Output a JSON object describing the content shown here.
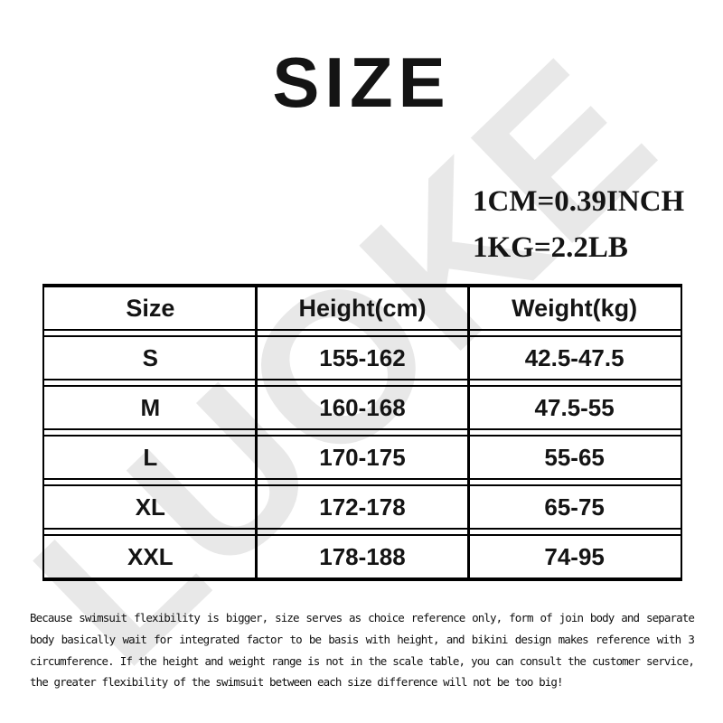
{
  "page": {
    "title": "SIZE",
    "watermark_text": "LUOKE",
    "colors": {
      "background": "#ffffff",
      "watermark": "#e8e8e8",
      "table_border": "#000000",
      "text": "#141414"
    }
  },
  "unit_conversion": {
    "cm_to_inch": "1CM=0.39INCH",
    "kg_to_lb": "1KG=2.2LB"
  },
  "size_table": {
    "columns": [
      "Size",
      "Height(cm)",
      "Weight(kg)"
    ],
    "rows": [
      {
        "size": "S",
        "height_cm": "155-162",
        "weight_kg": "42.5-47.5"
      },
      {
        "size": "M",
        "height_cm": "160-168",
        "weight_kg": "47.5-55"
      },
      {
        "size": "L",
        "height_cm": "170-175",
        "weight_kg": "55-65"
      },
      {
        "size": "XL",
        "height_cm": "172-178",
        "weight_kg": "65-75"
      },
      {
        "size": "XXL",
        "height_cm": "178-188",
        "weight_kg": "74-95"
      }
    ]
  },
  "disclaimer": {
    "lines": [
      "Because swimsuit flexibility is bigger, size serves as choice reference only, form of join body and separate",
      "body basically wait for integrated factor to be basis with height, and bikini design makes reference with 3",
      "circumference. If the height and weight range is not in the scale table, you can consult the customer service,",
      "the greater flexibility of the swimsuit between each size difference will not be too big!"
    ]
  }
}
